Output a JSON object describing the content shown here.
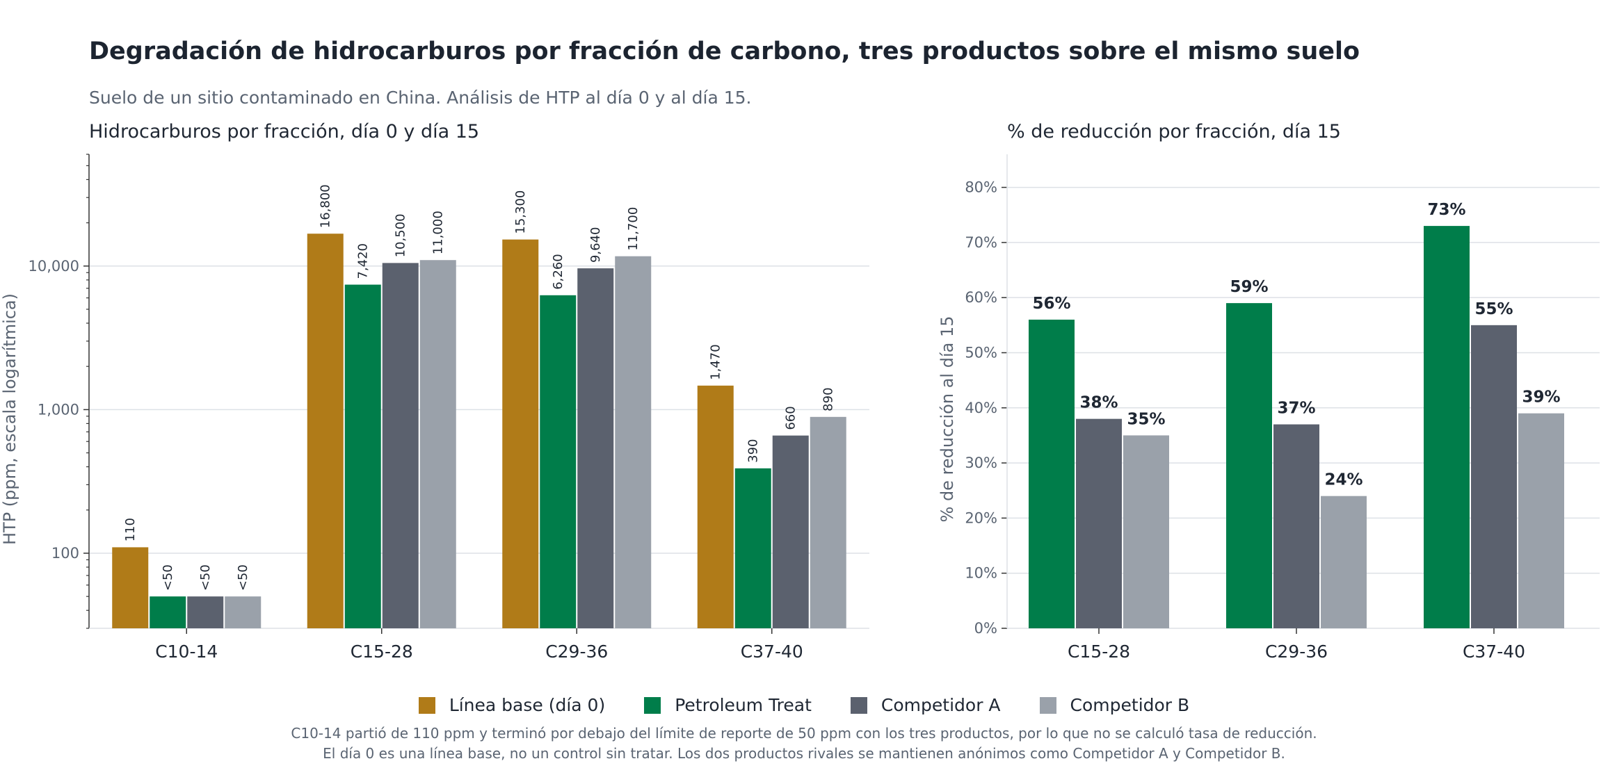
{
  "title": "Degradación de hidrocarburos por fracción de carbono, tres productos sobre el mismo suelo",
  "subtitle": "Suelo de un sitio contaminado en China. Análisis de HTP al día 0 y al día 15.",
  "colors": {
    "baseline": "#b07b18",
    "petroleum_treat": "#007d4a",
    "competitor_a": "#5b616e",
    "competitor_b": "#9aa1aa",
    "text": "#1f2733",
    "muted": "#5a6472",
    "grid": "#dde1e6"
  },
  "legend": [
    {
      "label": "Línea base (día 0)",
      "color": "#b07b18"
    },
    {
      "label": "Petroleum Treat",
      "color": "#007d4a"
    },
    {
      "label": "Competidor A",
      "color": "#5b616e"
    },
    {
      "label": "Competidor B",
      "color": "#9aa1aa"
    }
  ],
  "notes": [
    "C10-14 partió de 110 ppm y terminó por debajo del límite de reporte de 50 ppm con los tres productos, por lo que no se calculó tasa de reducción.",
    "El día 0 es una línea base, no un control sin tratar. Los dos productos rivales se mantienen anónimos como Competidor A y Competidor B."
  ],
  "chart_data": [
    {
      "type": "bar",
      "title": "Hidrocarburos por fracción, día 0 y día 15",
      "ylabel": "HTP (ppm, escala logarítmica)",
      "yscale": "log",
      "ylim": [
        30,
        60000
      ],
      "yticks": [
        100,
        1000,
        10000
      ],
      "ytick_labels": [
        "100",
        "1,000",
        "10,000"
      ],
      "grid": true,
      "categories": [
        "C10-14",
        "C15-28",
        "C29-36",
        "C37-40"
      ],
      "series": [
        {
          "name": "Línea base (día 0)",
          "values": [
            110,
            16800,
            15300,
            1470
          ],
          "labels": [
            "110",
            "16,800",
            "15,300",
            "1,470"
          ]
        },
        {
          "name": "Petroleum Treat",
          "values": [
            50,
            7420,
            6260,
            390
          ],
          "labels": [
            "<50",
            "7,420",
            "6,260",
            "390"
          ]
        },
        {
          "name": "Competidor A",
          "values": [
            50,
            10500,
            9640,
            660
          ],
          "labels": [
            "<50",
            "10,500",
            "9,640",
            "660"
          ]
        },
        {
          "name": "Competidor B",
          "values": [
            50,
            11000,
            11700,
            890
          ],
          "labels": [
            "<50",
            "11,000",
            "11,700",
            "890"
          ]
        }
      ]
    },
    {
      "type": "bar",
      "title": "% de reducción por fracción, día 15",
      "ylabel": "% de reducción al día 15",
      "ylim": [
        0,
        86
      ],
      "yticks": [
        0,
        10,
        20,
        30,
        40,
        50,
        60,
        70,
        80
      ],
      "ytick_labels": [
        "0%",
        "10%",
        "20%",
        "30%",
        "40%",
        "50%",
        "60%",
        "70%",
        "80%"
      ],
      "grid": true,
      "categories": [
        "C15-28",
        "C29-36",
        "C37-40"
      ],
      "series": [
        {
          "name": "Petroleum Treat",
          "values": [
            56,
            59,
            73
          ],
          "labels": [
            "56%",
            "59%",
            "73%"
          ]
        },
        {
          "name": "Competidor A",
          "values": [
            38,
            37,
            55
          ],
          "labels": [
            "38%",
            "37%",
            "55%"
          ]
        },
        {
          "name": "Competidor B",
          "values": [
            35,
            24,
            39
          ],
          "labels": [
            "35%",
            "24%",
            "39%"
          ]
        }
      ]
    }
  ]
}
